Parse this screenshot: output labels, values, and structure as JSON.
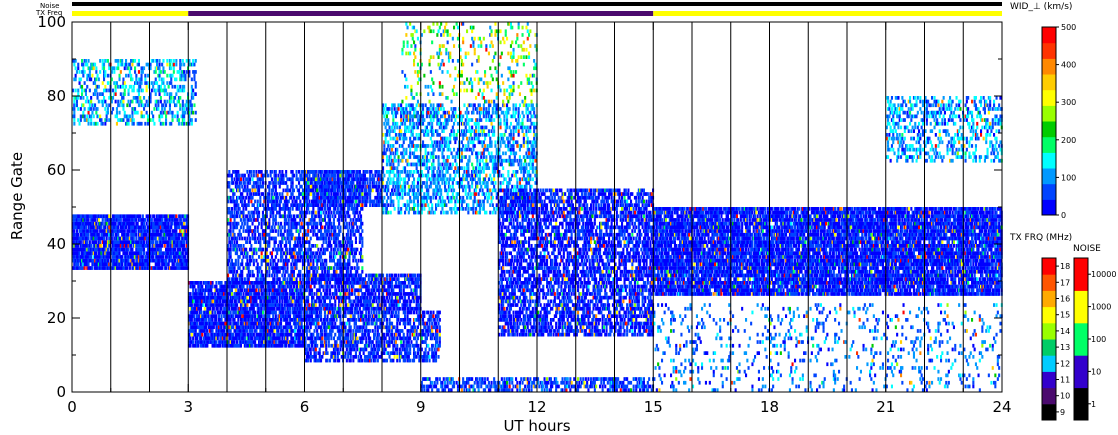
{
  "chart_data": {
    "type": "heatmap",
    "title": "",
    "xlabel": "UT hours",
    "ylabel": "Range Gate",
    "xlim": [
      0,
      24
    ],
    "ylim": [
      0,
      100
    ],
    "xticks": [
      "0",
      "3",
      "6",
      "9",
      "12",
      "15",
      "18",
      "21",
      "24"
    ],
    "yticks": [
      "0",
      "20",
      "40",
      "60",
      "80",
      "100"
    ],
    "status_bars": {
      "noise_label": "Noise",
      "txfreq_label": "TX Freq",
      "txfreq_segments": [
        {
          "start": 0,
          "end": 3,
          "color": "#ffff00"
        },
        {
          "start": 3,
          "end": 15,
          "color": "#4b0a6e"
        },
        {
          "start": 15,
          "end": 24,
          "color": "#ffff00"
        }
      ],
      "noise_color": "#000000"
    },
    "scans": {
      "boundaries_ut": [
        1.0,
        2.0,
        3.0,
        4.0,
        5.0,
        6.0,
        7.0,
        8.0,
        9.0,
        10.0,
        11.0,
        12.0,
        13.0,
        14.0,
        15.0,
        16.0,
        17.0,
        18.0,
        19.0,
        20.0,
        21.0,
        22.0,
        23.0
      ]
    },
    "echo_regions": [
      {
        "name": "band-0-3h",
        "x": [
          0.0,
          3.0
        ],
        "y": [
          33,
          48
        ],
        "density": 0.9,
        "value": 40
      },
      {
        "name": "high-0-3h",
        "x": [
          0.0,
          3.2
        ],
        "y": [
          72,
          90
        ],
        "density": 0.35,
        "value": 120
      },
      {
        "name": "lower-3-6h",
        "x": [
          3.0,
          6.0
        ],
        "y": [
          12,
          30
        ],
        "density": 0.85,
        "value": 40
      },
      {
        "name": "rising-arc-3-7h",
        "x": [
          4.0,
          7.5
        ],
        "y": [
          30,
          60
        ],
        "density": 0.55,
        "value": 50
      },
      {
        "name": "mid-6-9h",
        "x": [
          6.0,
          9.0
        ],
        "y": [
          22,
          32
        ],
        "density": 0.7,
        "value": 40
      },
      {
        "name": "low-6-9h",
        "x": [
          6.0,
          9.5
        ],
        "y": [
          8,
          22
        ],
        "density": 0.6,
        "value": 50
      },
      {
        "name": "upper-6-9h",
        "x": [
          6.0,
          8.0
        ],
        "y": [
          50,
          60
        ],
        "density": 0.6,
        "value": 50
      },
      {
        "name": "cloud-8-12h",
        "x": [
          8.0,
          12.0
        ],
        "y": [
          48,
          78
        ],
        "density": 0.45,
        "value": 110
      },
      {
        "name": "top-scatter-9-12h",
        "x": [
          8.5,
          12.0
        ],
        "y": [
          78,
          100
        ],
        "density": 0.15,
        "value": 250
      },
      {
        "name": "falling-arc-11-15h",
        "x": [
          11.0,
          15.0
        ],
        "y": [
          15,
          55
        ],
        "density": 0.6,
        "value": 40
      },
      {
        "name": "near-range-9-15h",
        "x": [
          9.0,
          15.0
        ],
        "y": [
          0,
          4
        ],
        "density": 0.5,
        "value": 60
      },
      {
        "name": "band-15-24h",
        "x": [
          15.0,
          24.0
        ],
        "y": [
          26,
          50
        ],
        "density": 0.85,
        "value": 40
      },
      {
        "name": "scatter-15-24h",
        "x": [
          15.0,
          24.0
        ],
        "y": [
          0,
          24
        ],
        "density": 0.12,
        "value": 90
      },
      {
        "name": "upper-21-24h",
        "x": [
          21.0,
          24.0
        ],
        "y": [
          62,
          80
        ],
        "density": 0.35,
        "value": 110
      }
    ],
    "colorbar_width": {
      "title": "WID_⊥ (km/s)",
      "ticks": [
        "0",
        "100",
        "200",
        "300",
        "400",
        "500"
      ],
      "colors": [
        "#0000ff",
        "#0044ff",
        "#0099ff",
        "#00ffff",
        "#00ff66",
        "#00cc00",
        "#99ff00",
        "#ffff00",
        "#ffcc00",
        "#ff8800",
        "#ff3300",
        "#ff0000"
      ]
    },
    "colorbar_txfreq": {
      "title": "TX FRQ (MHz)",
      "ticks": [
        "9",
        "10",
        "11",
        "12",
        "13",
        "14",
        "15",
        "16",
        "17",
        "18"
      ],
      "colors": [
        "#000000",
        "#4b0a6e",
        "#3300cc",
        "#00ccff",
        "#00cc66",
        "#99ff00",
        "#ffff00",
        "#ffaa00",
        "#ff5500",
        "#ff0000"
      ]
    },
    "colorbar_noise": {
      "title": "NOISE",
      "ticks": [
        "1",
        "10",
        "100",
        "1000",
        "10000"
      ],
      "colors": [
        "#000000",
        "#3300cc",
        "#00ff66",
        "#ffff00",
        "#ff0000"
      ]
    }
  }
}
